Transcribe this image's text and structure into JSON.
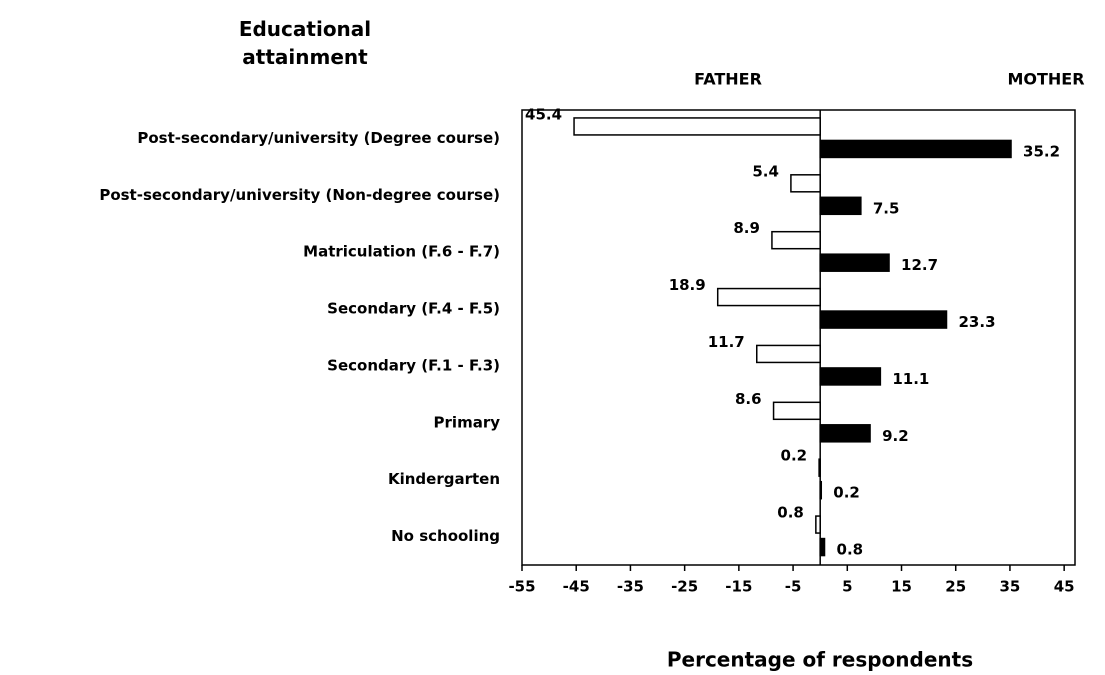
{
  "chart_data": {
    "type": "butterfly_bar",
    "y_axis_label": "Educational attainment",
    "x_axis_label": "Percentage of respondents",
    "categories": [
      "Post-secondary/university (Degree course)",
      "Post-secondary/university (Non-degree course)",
      "Matriculation (F.6 - F.7)",
      "Secondary (F.4 - F.5)",
      "Secondary (F.1 - F.3)",
      "Primary",
      "Kindergarten",
      "No schooling"
    ],
    "series": [
      {
        "name": "FATHER",
        "color": "#ffffff",
        "values": [
          -45.4,
          -5.4,
          -8.9,
          -18.9,
          -11.7,
          -8.6,
          -0.2,
          -0.8
        ],
        "value_labels": [
          "45.4",
          "5.4",
          "8.9",
          "18.9",
          "11.7",
          "8.6",
          "0.2",
          "0.8"
        ]
      },
      {
        "name": "MOTHER",
        "color": "#000000",
        "values": [
          35.2,
          7.5,
          12.7,
          23.3,
          11.1,
          9.2,
          0.2,
          0.8
        ]
      }
    ],
    "xlim": [
      -55,
      47
    ],
    "xticks": [
      -55,
      -45,
      -35,
      -25,
      -15,
      -5,
      5,
      15,
      25,
      35,
      45
    ],
    "grid": false
  }
}
